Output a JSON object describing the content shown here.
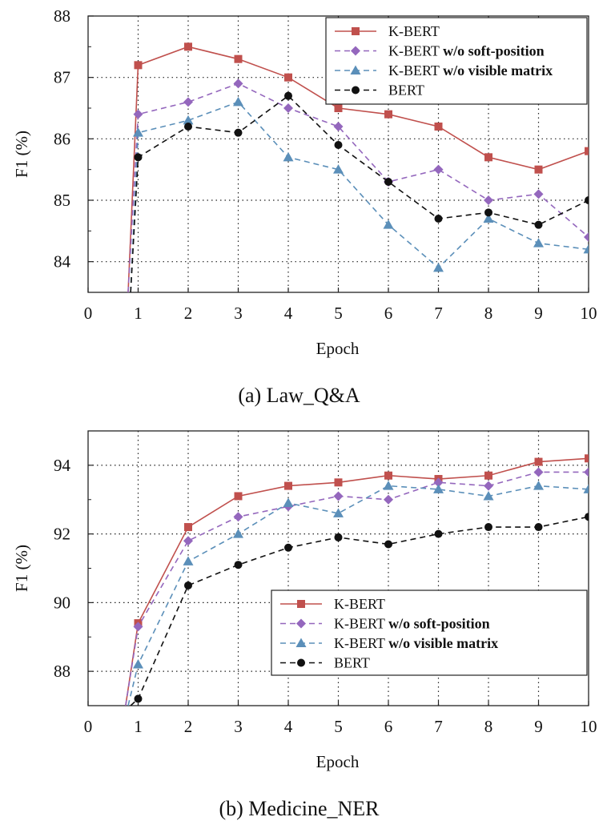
{
  "chart_data": [
    {
      "type": "line",
      "caption": "(a) Law_Q&A",
      "xlabel": "Epoch",
      "ylabel": "F1 (%)",
      "xlim": [
        0,
        10
      ],
      "ylim": [
        83.5,
        88
      ],
      "xticks": [
        0,
        1,
        2,
        3,
        4,
        5,
        6,
        7,
        8,
        9,
        10
      ],
      "yticks": [
        84,
        85,
        86,
        87,
        88
      ],
      "grid": true,
      "legend_position": "top-right",
      "series": [
        {
          "name": "K-BERT",
          "name_parts": [
            "K-BERT",
            ""
          ],
          "color": "#c0504d",
          "marker": "square",
          "dash": "solid",
          "x": [
            0.8,
            1,
            2,
            3,
            4,
            5,
            6,
            7,
            8,
            9,
            10
          ],
          "y": [
            83.5,
            87.2,
            87.5,
            87.3,
            87.0,
            86.5,
            86.4,
            86.2,
            85.7,
            85.5,
            85.8
          ]
        },
        {
          "name": "K-BERT w/o soft-position",
          "name_parts": [
            "K-BERT ",
            "w/o soft-position"
          ],
          "color": "#9467bd",
          "marker": "diamond",
          "dash": "dashed",
          "x": [
            0.8,
            1,
            2,
            3,
            4,
            5,
            6,
            7,
            8,
            9,
            10
          ],
          "y": [
            83.5,
            86.4,
            86.6,
            86.9,
            86.5,
            86.2,
            85.3,
            85.5,
            85.0,
            85.1,
            84.4
          ]
        },
        {
          "name": "K-BERT w/o visible matrix",
          "name_parts": [
            "K-BERT ",
            "w/o visible matrix"
          ],
          "color": "#5b8fb9",
          "marker": "triangle",
          "dash": "dashed",
          "x": [
            0.85,
            1,
            2,
            3,
            4,
            5,
            6,
            7,
            8,
            9,
            10
          ],
          "y": [
            83.5,
            86.1,
            86.3,
            86.6,
            85.7,
            85.5,
            84.6,
            83.9,
            84.7,
            84.3,
            84.2
          ]
        },
        {
          "name": "BERT",
          "name_parts": [
            "BERT",
            ""
          ],
          "color": "#111111",
          "marker": "circle",
          "dash": "dashed",
          "x": [
            0.85,
            1,
            2,
            3,
            4,
            5,
            6,
            7,
            8,
            9,
            10
          ],
          "y": [
            83.5,
            85.7,
            86.2,
            86.1,
            86.7,
            85.9,
            85.3,
            84.7,
            84.8,
            84.6,
            85.0
          ]
        }
      ]
    },
    {
      "type": "line",
      "caption": "(b) Medicine_NER",
      "xlabel": "Epoch",
      "ylabel": "F1 (%)",
      "xlim": [
        0,
        10
      ],
      "ylim": [
        87,
        95
      ],
      "xticks": [
        0,
        1,
        2,
        3,
        4,
        5,
        6,
        7,
        8,
        9,
        10
      ],
      "yticks": [
        88,
        90,
        92,
        94
      ],
      "grid": true,
      "legend_position": "center-right",
      "series": [
        {
          "name": "K-BERT",
          "name_parts": [
            "K-BERT",
            ""
          ],
          "color": "#c0504d",
          "marker": "square",
          "dash": "solid",
          "x": [
            0.75,
            1,
            2,
            3,
            4,
            5,
            6,
            7,
            8,
            9,
            10
          ],
          "y": [
            87.0,
            89.4,
            92.2,
            93.1,
            93.4,
            93.5,
            93.7,
            93.6,
            93.7,
            94.1,
            94.2
          ]
        },
        {
          "name": "K-BERT w/o soft-position",
          "name_parts": [
            "K-BERT ",
            "w/o soft-position"
          ],
          "color": "#9467bd",
          "marker": "diamond",
          "dash": "dashed",
          "x": [
            0.75,
            1,
            2,
            3,
            4,
            5,
            6,
            7,
            8,
            9,
            10
          ],
          "y": [
            87.0,
            89.3,
            91.8,
            92.5,
            92.8,
            93.1,
            93.0,
            93.5,
            93.4,
            93.8,
            93.8
          ]
        },
        {
          "name": "K-BERT w/o visible matrix",
          "name_parts": [
            "K-BERT ",
            "w/o visible matrix"
          ],
          "color": "#5b8fb9",
          "marker": "triangle",
          "dash": "dashed",
          "x": [
            0.8,
            1,
            2,
            3,
            4,
            5,
            6,
            7,
            8,
            9,
            10
          ],
          "y": [
            87.0,
            88.2,
            91.2,
            92.0,
            92.9,
            92.6,
            93.4,
            93.3,
            93.1,
            93.4,
            93.3
          ]
        },
        {
          "name": "BERT",
          "name_parts": [
            "BERT",
            ""
          ],
          "color": "#111111",
          "marker": "circle",
          "dash": "dashed",
          "x": [
            0.85,
            1,
            2,
            3,
            4,
            5,
            6,
            7,
            8,
            9,
            10
          ],
          "y": [
            87.0,
            87.2,
            90.5,
            91.1,
            91.6,
            91.9,
            91.7,
            92.0,
            92.2,
            92.2,
            92.5
          ]
        }
      ]
    }
  ]
}
